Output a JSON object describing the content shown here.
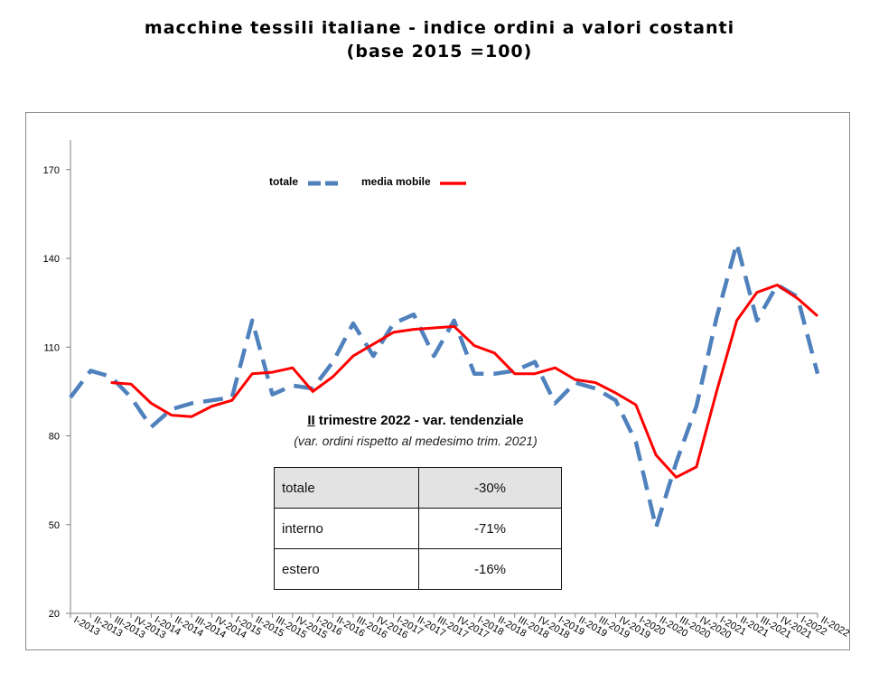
{
  "title_line1": "macchine tessili italiane - indice ordini a valori costanti",
  "title_line2": "(base 2015 =100)",
  "chart_data": {
    "type": "line",
    "title": "macchine tessili italiane - indice ordini a valori costanti (base 2015 =100)",
    "categories": [
      "I-2013",
      "II-2013",
      "III-2013",
      "IV-2013",
      "I-2014",
      "II-2014",
      "III-2014",
      "IV-2014",
      "I-2015",
      "II-2015",
      "III-2015",
      "IV-2015",
      "I-2016",
      "II-2016",
      "III-2016",
      "IV-2016",
      "I-2017",
      "II-2017",
      "III-2017",
      "IV-2017",
      "I-2018",
      "II-2018",
      "III-2018",
      "IV-2018",
      "I-2019",
      "II-2019",
      "III-2019",
      "IV-2019",
      "I-2020",
      "II-2020",
      "III-2020",
      "IV-2020",
      "I-2021",
      "II-2021",
      "III-2021",
      "IV-2021",
      "I-2022",
      "II-2022"
    ],
    "ylim": [
      20,
      180
    ],
    "yticks": [
      20,
      50,
      80,
      110,
      140,
      170
    ],
    "grid": false,
    "legend_position": "top-left",
    "series": [
      {
        "name": "totale",
        "style": "dashed",
        "color": "#4f81bd",
        "values": [
          93,
          102,
          100,
          93,
          83,
          89,
          91,
          92,
          93,
          119,
          94,
          97,
          96,
          105,
          118,
          107,
          118,
          121,
          107,
          119,
          101,
          101,
          102,
          105,
          91,
          98,
          96,
          92,
          78,
          49,
          71,
          90,
          120,
          145,
          119,
          131,
          127,
          101
        ]
      },
      {
        "name": "media mobile",
        "style": "solid",
        "color": "#ff0000",
        "values": [
          null,
          null,
          98,
          97.5,
          91,
          87,
          86.5,
          90,
          92,
          101,
          101.5,
          103,
          95,
          100,
          107,
          111,
          115,
          116,
          116.5,
          117,
          110.5,
          108,
          101,
          101,
          103,
          99,
          98,
          94.5,
          90.5,
          73.5,
          66,
          69.5,
          95,
          119,
          128.5,
          131,
          126.5,
          120.5
        ]
      }
    ]
  },
  "note": {
    "title_prefix": "II",
    "title_rest": " trimestre 2022 - var. tendenziale",
    "subtitle": "(var. ordini rispetto al medesimo trim. 2021)"
  },
  "summary_table": [
    {
      "label": "totale",
      "value": "-30%"
    },
    {
      "label": "interno",
      "value": "-71%"
    },
    {
      "label": "estero",
      "value": "-16%"
    }
  ]
}
